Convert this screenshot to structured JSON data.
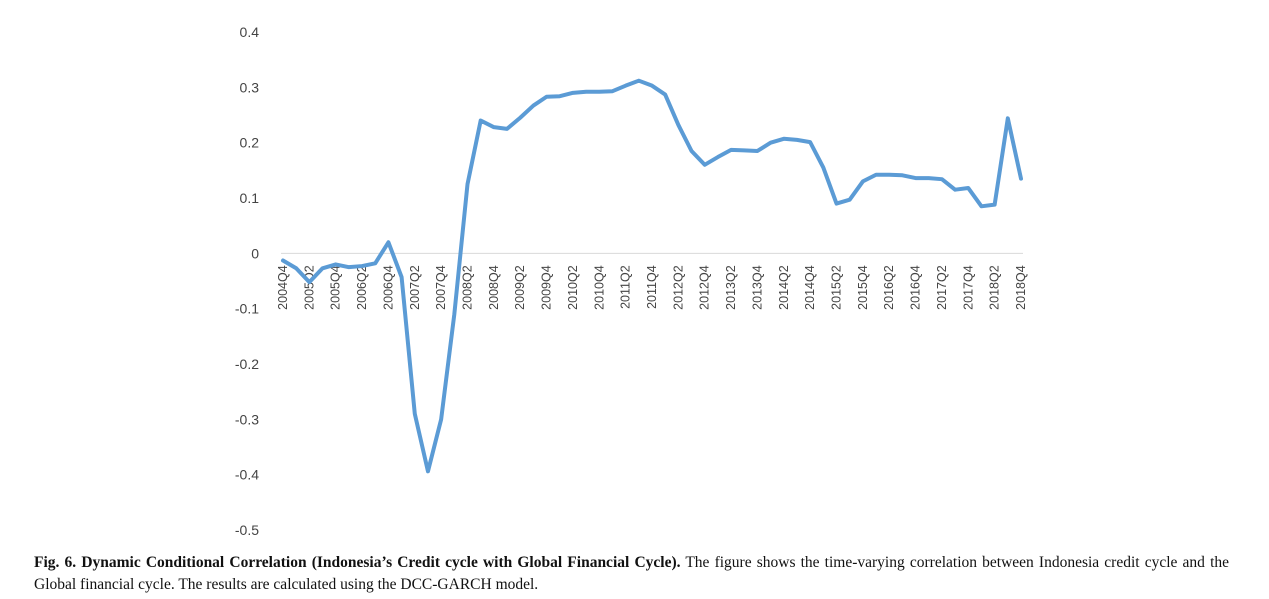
{
  "caption": {
    "label": "Fig. 6.",
    "title": "Dynamic Conditional Correlation (Indonesia’s Credit cycle with Global Financial Cycle).",
    "text": "The figure shows the time-varying correlation between Indonesia credit cycle and the Global financial cycle. The results are calculated using the DCC-GARCH model."
  },
  "chart_data": {
    "type": "line",
    "title": "",
    "xlabel": "",
    "ylabel": "",
    "ylim": [
      -0.5,
      0.4
    ],
    "yticks": [
      -0.5,
      -0.4,
      -0.3,
      -0.2,
      -0.1,
      0,
      0.1,
      0.2,
      0.3,
      0.4
    ],
    "grid": false,
    "legend": "none",
    "line_color": "#5B9BD5",
    "x_tick_labels": [
      "2004Q4",
      "2005Q2",
      "2005Q4",
      "2006Q2",
      "2006Q4",
      "2007Q2",
      "2007Q4",
      "2008Q2",
      "2008Q4",
      "2009Q2",
      "2009Q4",
      "2010Q2",
      "2010Q4",
      "2011Q2",
      "2011Q4",
      "2012Q2",
      "2012Q4",
      "2013Q2",
      "2013Q4",
      "2014Q2",
      "2014Q4",
      "2015Q2",
      "2015Q4",
      "2016Q2",
      "2016Q4",
      "2017Q2",
      "2017Q4",
      "2018Q2",
      "2018Q4"
    ],
    "x": [
      "2004Q4",
      "2005Q1",
      "2005Q2",
      "2005Q3",
      "2005Q4",
      "2006Q1",
      "2006Q2",
      "2006Q3",
      "2006Q4",
      "2007Q1",
      "2007Q2",
      "2007Q3",
      "2007Q4",
      "2008Q1",
      "2008Q2",
      "2008Q3",
      "2008Q4",
      "2009Q1",
      "2009Q2",
      "2009Q3",
      "2009Q4",
      "2010Q1",
      "2010Q2",
      "2010Q3",
      "2010Q4",
      "2011Q1",
      "2011Q2",
      "2011Q3",
      "2011Q4",
      "2012Q1",
      "2012Q2",
      "2012Q3",
      "2012Q4",
      "2013Q1",
      "2013Q2",
      "2013Q3",
      "2013Q4",
      "2014Q1",
      "2014Q2",
      "2014Q3",
      "2014Q4",
      "2015Q1",
      "2015Q2",
      "2015Q3",
      "2015Q4",
      "2016Q1",
      "2016Q2",
      "2016Q3",
      "2016Q4",
      "2017Q1",
      "2017Q2",
      "2017Q3",
      "2017Q4",
      "2018Q1",
      "2018Q2",
      "2018Q3",
      "2018Q4"
    ],
    "series": [
      {
        "values": [
          -0.013,
          -0.027,
          -0.052,
          -0.027,
          -0.02,
          -0.025,
          -0.023,
          -0.018,
          0.02,
          -0.043,
          -0.29,
          -0.394,
          -0.3,
          -0.11,
          0.125,
          0.24,
          0.228,
          0.225,
          0.245,
          0.267,
          0.283,
          0.284,
          0.29,
          0.292,
          0.292,
          0.293,
          0.303,
          0.312,
          0.303,
          0.287,
          0.232,
          0.185,
          0.16,
          0.174,
          0.187,
          0.186,
          0.185,
          0.2,
          0.207,
          0.205,
          0.201,
          0.155,
          0.09,
          0.097,
          0.13,
          0.142,
          0.142,
          0.141,
          0.136,
          0.136,
          0.134,
          0.115,
          0.118,
          0.085,
          0.088,
          0.244,
          0.135
        ]
      }
    ]
  }
}
